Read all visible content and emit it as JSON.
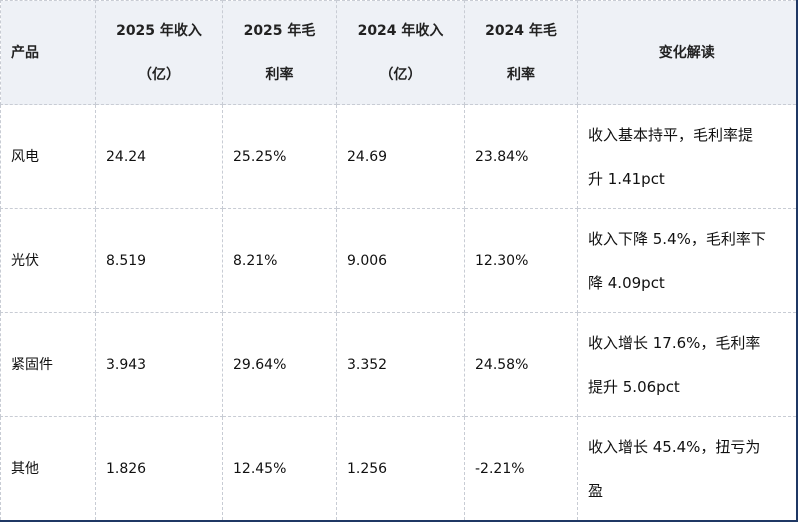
{
  "table": {
    "header": [
      [
        "产品"
      ],
      [
        "2025 年收入",
        "（亿）"
      ],
      [
        "2025 年毛",
        "利率"
      ],
      [
        "2024 年收入",
        "（亿）"
      ],
      [
        "2024 年毛",
        "利率"
      ],
      [
        "变化解读"
      ]
    ],
    "rows": [
      [
        [
          "风电"
        ],
        [
          "24.24"
        ],
        [
          "25.25%"
        ],
        [
          "24.69"
        ],
        [
          "23.84%"
        ],
        [
          "收入基本持平，毛利率提",
          "升 1.41pct"
        ]
      ],
      [
        [
          "光伏"
        ],
        [
          "8.519"
        ],
        [
          "8.21%"
        ],
        [
          "9.006"
        ],
        [
          "12.30%"
        ],
        [
          "收入下降 5.4%，毛利率下",
          "降 4.09pct"
        ]
      ],
      [
        [
          "紧固件"
        ],
        [
          "3.943"
        ],
        [
          "29.64%"
        ],
        [
          "3.352"
        ],
        [
          "24.58%"
        ],
        [
          "收入增长 17.6%，毛利率",
          "提升 5.06pct"
        ]
      ],
      [
        [
          "其他"
        ],
        [
          "1.826"
        ],
        [
          "12.45%"
        ],
        [
          "1.256"
        ],
        [
          "-2.21%"
        ],
        [
          "收入增长 45.4%，扭亏为",
          "盈"
        ]
      ]
    ]
  }
}
